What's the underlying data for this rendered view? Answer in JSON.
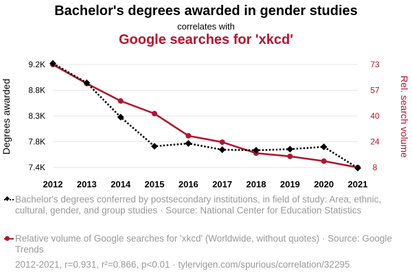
{
  "header": {
    "title": "Bachelor's degrees awarded in gender studies",
    "subtitle": "correlates with",
    "title2": "Google searches for 'xkcd'"
  },
  "chart_data": {
    "type": "line",
    "x": [
      2012,
      2013,
      2014,
      2015,
      2016,
      2017,
      2018,
      2019,
      2020,
      2021
    ],
    "xtick_labels": [
      "2012",
      "2013",
      "2014",
      "2015",
      "2016",
      "2017",
      "2018",
      "2019",
      "2020",
      "2021"
    ],
    "ylabel_left": "Degrees awarded",
    "ylabel_right": "Rel. search volume",
    "left_ticks": [
      {
        "label": "9.2K",
        "value": 9200
      },
      {
        "label": "8.8K",
        "value": 8800
      },
      {
        "label": "8.3K",
        "value": 8300
      },
      {
        "label": "7.8K",
        "value": 7800
      },
      {
        "label": "7.4K",
        "value": 7400
      }
    ],
    "right_ticks": [
      {
        "label": "73",
        "value": 73
      },
      {
        "label": "57",
        "value": 57
      },
      {
        "label": "40",
        "value": 40
      },
      {
        "label": "24",
        "value": 24
      },
      {
        "label": "8",
        "value": 8
      }
    ],
    "ylim_left": [
      7400,
      9200
    ],
    "ylim_right": [
      8,
      73
    ],
    "grid": true,
    "series": [
      {
        "axis": "left",
        "color": "#000000",
        "style": "dotted",
        "marker": "diamond",
        "values": [
          9220,
          8880,
          8280,
          7770,
          7820,
          7710,
          7700,
          7720,
          7760,
          7390
        ]
      },
      {
        "axis": "right",
        "color": "#b5142d",
        "style": "solid",
        "marker": "circle",
        "values": [
          73,
          61,
          50,
          42,
          28,
          24,
          17,
          15,
          12,
          8
        ]
      }
    ]
  },
  "legend": [
    {
      "text": "Bachelor's degrees conferred by postsecondary institutions, in field of study: Area, ethnic, cultural, gender, and group studies · Source: National Center for Education Statistics"
    },
    {
      "text": "Relative volume of Google searches for 'xkcd' (Worldwide, without quotes) · Source: Google Trends"
    }
  ],
  "footer": "2012-2021, r=0.931, r²=0.866, p<0.01 · tylervigen.com/spurious/correlation/32295"
}
